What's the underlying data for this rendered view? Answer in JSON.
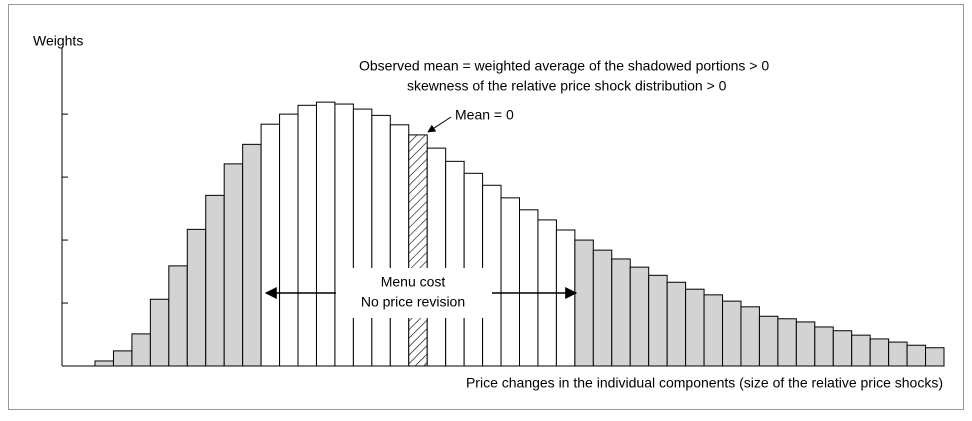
{
  "chart_data": {
    "type": "bar",
    "y_label": "Weights",
    "x_label": "Price changes in the individual components (size of the relative price shocks)",
    "annotations": [
      "Observed mean = weighted average of the shadowed portions > 0",
      "skewness of the relative price shock distribution > 0",
      "Mean = 0",
      "Menu cost",
      "No price revision"
    ],
    "categories": [
      null,
      null,
      null,
      null,
      null,
      null,
      null,
      null,
      null,
      null,
      null,
      null,
      null,
      null,
      null,
      null,
      null,
      null,
      null,
      null,
      null,
      null,
      null,
      null,
      null,
      null,
      null,
      null,
      null,
      null,
      null,
      null,
      null,
      null,
      null,
      null,
      null,
      null,
      null,
      null,
      null,
      null,
      null,
      null,
      null,
      null
    ],
    "values": [
      0.08,
      0.24,
      0.51,
      1.06,
      1.59,
      2.17,
      2.71,
      3.21,
      3.52,
      3.84,
      4.0,
      4.14,
      4.19,
      4.16,
      4.08,
      3.98,
      3.83,
      3.67,
      3.46,
      3.25,
      3.06,
      2.87,
      2.67,
      2.48,
      2.32,
      2.16,
      2.0,
      1.84,
      1.7,
      1.57,
      1.44,
      1.33,
      1.22,
      1.13,
      1.03,
      0.94,
      0.79,
      0.75,
      0.7,
      0.62,
      0.56,
      0.49,
      0.43,
      0.38,
      0.33,
      0.29
    ],
    "colors": [
      "#d3d3d3",
      "#d3d3d3",
      "#d3d3d3",
      "#d3d3d3",
      "#d3d3d3",
      "#d3d3d3",
      "#d3d3d3",
      "#d3d3d3",
      "#d3d3d3",
      "#ffffff",
      "#ffffff",
      "#ffffff",
      "#ffffff",
      "#ffffff",
      "#ffffff",
      "#ffffff",
      "#ffffff",
      "#ffffff",
      "#ffffff",
      "#ffffff",
      "#ffffff",
      "#ffffff",
      "#ffffff",
      "#ffffff",
      "#ffffff",
      "#ffffff",
      "#d3d3d3",
      "#d3d3d3",
      "#d3d3d3",
      "#d3d3d3",
      "#d3d3d3",
      "#d3d3d3",
      "#d3d3d3",
      "#d3d3d3",
      "#d3d3d3",
      "#d3d3d3",
      "#d3d3d3",
      "#d3d3d3",
      "#d3d3d3",
      "#d3d3d3",
      "#d3d3d3",
      "#d3d3d3",
      "#d3d3d3",
      "#d3d3d3",
      "#d3d3d3",
      "#d3d3d3"
    ],
    "patterns": [
      "solid",
      "solid",
      "solid",
      "solid",
      "solid",
      "solid",
      "solid",
      "solid",
      "solid",
      "solid",
      "solid",
      "solid",
      "solid",
      "solid",
      "solid",
      "solid",
      "solid",
      "hatch",
      "solid",
      "solid",
      "solid",
      "solid",
      "solid",
      "solid",
      "solid",
      "solid",
      "solid",
      "solid",
      "solid",
      "solid",
      "solid",
      "solid",
      "solid",
      "solid",
      "solid",
      "solid",
      "solid",
      "solid",
      "solid",
      "solid",
      "solid",
      "solid",
      "solid",
      "solid",
      "solid",
      "solid"
    ],
    "ylim": [
      0,
      5.05
    ],
    "yticks": [
      1,
      2,
      3,
      4
    ]
  }
}
